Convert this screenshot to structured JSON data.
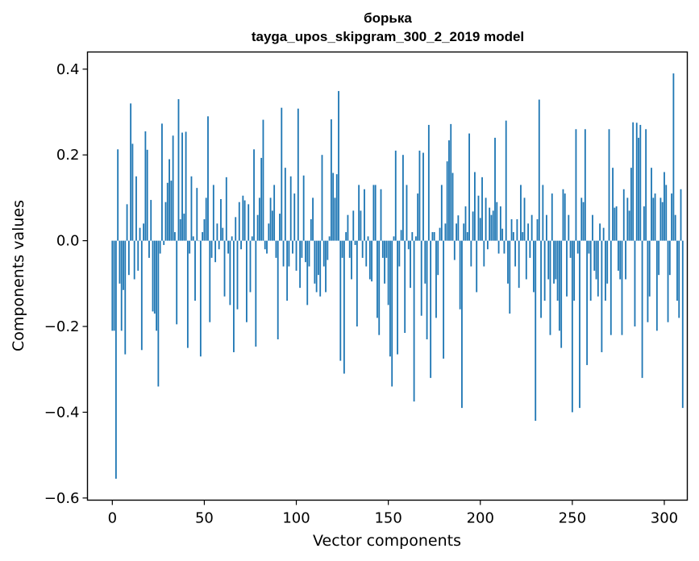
{
  "chart_data": {
    "type": "bar",
    "title_lines": [
      "борька",
      "tayga_upos_skipgram_300_2_2019 model"
    ],
    "xlabel": "Vector components",
    "ylabel": "Components values",
    "xlim": [
      -13.5,
      312.5
    ],
    "ylim": [
      -0.605,
      0.44
    ],
    "xticks": [
      0,
      50,
      100,
      150,
      200,
      250,
      300
    ],
    "xtick_labels": [
      "0",
      "50",
      "100",
      "150",
      "200",
      "250",
      "300"
    ],
    "yticks": [
      -0.6,
      -0.4,
      -0.2,
      0.0,
      0.2,
      0.4
    ],
    "ytick_labels": [
      "−0.6",
      "−0.4",
      "−0.2",
      "0.0",
      "0.2",
      "0.4"
    ],
    "bar_color": "#1f77b4",
    "grid": false,
    "values": [
      -0.21,
      -0.21,
      -0.555,
      0.213,
      -0.1,
      -0.21,
      -0.115,
      -0.265,
      0.085,
      -0.08,
      0.32,
      0.226,
      -0.09,
      0.15,
      -0.07,
      0.03,
      -0.255,
      0.04,
      0.255,
      0.212,
      -0.04,
      0.095,
      -0.165,
      -0.17,
      -0.21,
      -0.34,
      -0.03,
      0.273,
      -0.01,
      0.09,
      0.135,
      0.19,
      0.14,
      0.245,
      0.02,
      -0.195,
      0.33,
      0.05,
      0.252,
      0.063,
      0.254,
      -0.25,
      -0.03,
      0.15,
      0.01,
      -0.14,
      0.123,
      0.0,
      -0.27,
      0.02,
      0.05,
      0.1,
      0.29,
      -0.19,
      -0.04,
      0.13,
      -0.05,
      0.04,
      -0.02,
      0.097,
      0.03,
      -0.13,
      0.148,
      -0.03,
      -0.15,
      0.01,
      -0.26,
      0.055,
      -0.16,
      0.09,
      -0.02,
      0.105,
      0.094,
      -0.19,
      0.085,
      -0.12,
      0.01,
      0.213,
      -0.247,
      0.06,
      0.1,
      0.193,
      0.282,
      -0.02,
      -0.03,
      0.04,
      0.1,
      0.07,
      0.13,
      -0.04,
      -0.23,
      0.063,
      0.31,
      -0.06,
      0.17,
      -0.14,
      -0.06,
      0.15,
      -0.03,
      0.11,
      -0.07,
      0.308,
      -0.11,
      -0.04,
      0.152,
      -0.05,
      -0.15,
      -0.06,
      0.05,
      0.1,
      -0.1,
      -0.12,
      -0.08,
      -0.13,
      0.2,
      -0.06,
      -0.12,
      -0.045,
      0.01,
      0.283,
      0.158,
      0.1,
      0.155,
      0.349,
      -0.28,
      -0.04,
      -0.31,
      0.02,
      0.06,
      -0.04,
      -0.09,
      0.07,
      -0.01,
      -0.2,
      0.13,
      0.07,
      -0.04,
      0.12,
      -0.06,
      0.01,
      -0.09,
      -0.095,
      0.13,
      0.13,
      -0.18,
      -0.22,
      0.12,
      -0.04,
      -0.1,
      -0.04,
      -0.15,
      -0.27,
      -0.34,
      0.01,
      0.21,
      -0.265,
      -0.06,
      0.025,
      0.2,
      -0.215,
      0.13,
      -0.02,
      -0.11,
      0.02,
      -0.375,
      0.01,
      0.11,
      0.21,
      -0.175,
      0.205,
      -0.1,
      -0.23,
      0.27,
      -0.32,
      0.02,
      0.02,
      -0.18,
      -0.08,
      0.03,
      0.13,
      -0.275,
      0.04,
      0.185,
      0.234,
      0.272,
      0.158,
      -0.045,
      0.04,
      0.059,
      -0.16,
      -0.39,
      0.04,
      0.08,
      0.02,
      0.25,
      -0.06,
      0.068,
      0.16,
      -0.12,
      0.105,
      0.053,
      0.148,
      -0.06,
      0.1,
      -0.02,
      0.077,
      0.06,
      0.07,
      0.24,
      0.09,
      -0.03,
      0.08,
      0.028,
      -0.03,
      0.28,
      -0.1,
      -0.17,
      0.05,
      0.02,
      -0.06,
      0.05,
      -0.11,
      0.13,
      0.02,
      0.1,
      -0.09,
      0.04,
      -0.04,
      0.06,
      -0.12,
      -0.42,
      0.05,
      0.329,
      -0.18,
      0.13,
      -0.14,
      0.06,
      -0.09,
      -0.22,
      0.11,
      -0.1,
      -0.09,
      -0.14,
      -0.21,
      -0.25,
      0.12,
      0.11,
      -0.13,
      0.06,
      -0.04,
      -0.4,
      -0.14,
      0.26,
      -0.03,
      -0.39,
      0.1,
      0.09,
      0.26,
      -0.29,
      -0.03,
      -0.14,
      0.06,
      -0.07,
      -0.09,
      -0.13,
      0.04,
      -0.26,
      0.03,
      -0.14,
      -0.1,
      0.26,
      -0.22,
      0.17,
      0.077,
      0.08,
      -0.07,
      -0.09,
      -0.22,
      0.12,
      -0.09,
      0.1,
      0.07,
      0.17,
      0.276,
      -0.2,
      0.275,
      0.24,
      0.27,
      -0.32,
      0.08,
      0.26,
      -0.19,
      -0.13,
      0.17,
      0.1,
      0.11,
      -0.21,
      -0.08,
      0.1,
      0.09,
      0.16,
      0.13,
      -0.19,
      -0.08,
      0.11,
      0.39,
      0.06,
      -0.14,
      -0.18,
      0.12,
      -0.39
    ]
  }
}
